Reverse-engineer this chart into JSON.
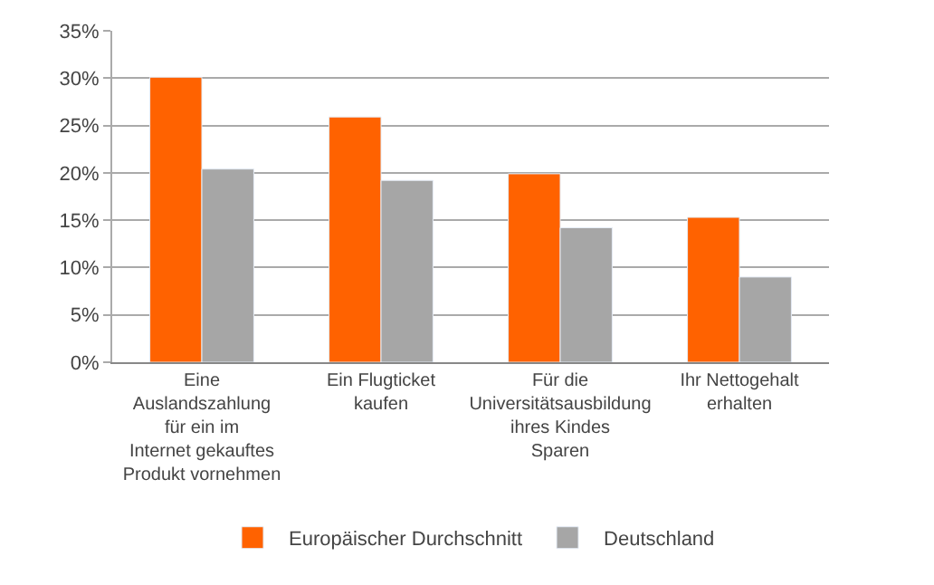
{
  "chart_data": {
    "type": "bar",
    "categories": [
      "Eine Auslandszahlung für ein im Internet gekauftes Produkt vornehmen",
      "Ein Flugticket kaufen",
      "Für die Universitätsausbildung ihres Kindes Sparen",
      "Ihr Nettogehalt erhalten"
    ],
    "series": [
      {
        "name": "Europäischer Durchschnitt",
        "color": "#ff6200",
        "values": [
          30.1,
          25.9,
          19.9,
          15.3
        ]
      },
      {
        "name": "Deutschland",
        "color": "#a6a6a6",
        "values": [
          20.4,
          19.2,
          14.2,
          9.0
        ]
      }
    ],
    "ylim": [
      0,
      35
    ],
    "yticks": [
      {
        "value": 0,
        "label": "0%"
      },
      {
        "value": 5,
        "label": "5%"
      },
      {
        "value": 10,
        "label": "10%"
      },
      {
        "value": 15,
        "label": "15%"
      },
      {
        "value": 20,
        "label": "20%"
      },
      {
        "value": 25,
        "label": "25%"
      },
      {
        "value": 30,
        "label": "30%"
      },
      {
        "value": 35,
        "label": "35%"
      }
    ],
    "grid": "y",
    "legend": "bottom"
  }
}
